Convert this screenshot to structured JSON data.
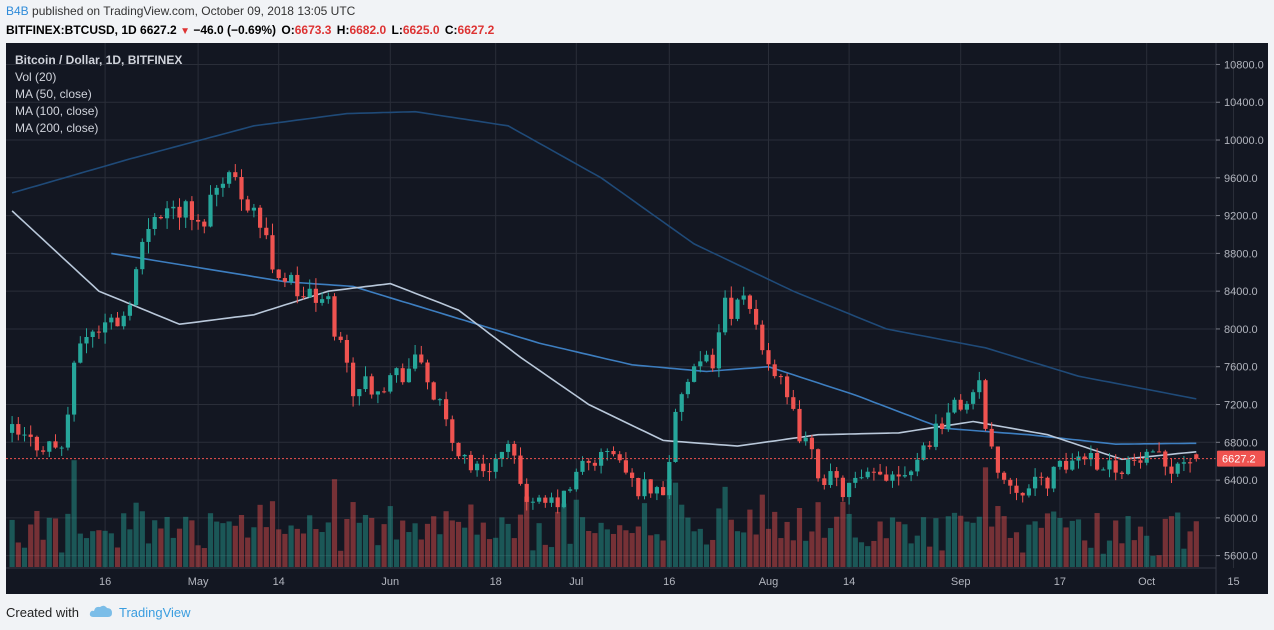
{
  "header": {
    "author": "B4B",
    "published_text": "published on TradingView.com, October 09, 2018 13:05 UTC",
    "symbol": "BITFINEX:BTCUSD, 1D",
    "last": "6627.2",
    "change": "−46.0 (−0.69%)",
    "o_label": "O:",
    "o": "6673.3",
    "h_label": "H:",
    "h": "6682.0",
    "l_label": "L:",
    "l": "6625.0",
    "c_label": "C:",
    "c": "6627.2"
  },
  "legend": {
    "title": "Bitcoin / Dollar, 1D, BITFINEX",
    "vol": "Vol (20)",
    "ma50": "MA (50, close)",
    "ma100": "MA (100, close)",
    "ma200": "MA (200, close)"
  },
  "footer": {
    "created_with": "Created with",
    "brand": "TradingView"
  },
  "colors": {
    "background": "#131722",
    "up": "#26a69a",
    "down": "#ef5350",
    "ma50": "#b9c8da",
    "ma100": "#3d7ec0",
    "ma200": "#1f4a78",
    "price_line": "#ef5350"
  },
  "chart_data": {
    "type": "candlestick",
    "symbol": "BITFINEX:BTCUSD",
    "interval": "1D",
    "date_range": [
      "2018-04-01",
      "2018-10-09"
    ],
    "ylim": [
      5480,
      10900
    ],
    "y_ticks": [
      "10800.0",
      "10400.0",
      "10000.0",
      "9600.0",
      "9200.0",
      "8800.0",
      "8400.0",
      "8000.0",
      "7600.0",
      "7200.0",
      "6800.0",
      "6400.0",
      "6000.0",
      "5600.0"
    ],
    "x_ticks": [
      {
        "date": "2018-04-16",
        "label": "16"
      },
      {
        "date": "2018-05-01",
        "label": "May"
      },
      {
        "date": "2018-05-14",
        "label": "14"
      },
      {
        "date": "2018-06-01",
        "label": "Jun"
      },
      {
        "date": "2018-06-18",
        "label": "18"
      },
      {
        "date": "2018-07-01",
        "label": "Jul"
      },
      {
        "date": "2018-07-16",
        "label": "16"
      },
      {
        "date": "2018-08-01",
        "label": "Aug"
      },
      {
        "date": "2018-08-14",
        "label": "14"
      },
      {
        "date": "2018-09-01",
        "label": "Sep"
      },
      {
        "date": "2018-09-17",
        "label": "17"
      },
      {
        "date": "2018-10-01",
        "label": "Oct"
      },
      {
        "date": "2018-10-15",
        "label": "15"
      }
    ],
    "last_price": 6627.2,
    "last_price_label": "6627.2",
    "close_waypoints": [
      {
        "date": "2018-04-01",
        "close": 6900
      },
      {
        "date": "2018-04-04",
        "close": 6800
      },
      {
        "date": "2018-04-09",
        "close": 6750
      },
      {
        "date": "2018-04-12",
        "close": 7900
      },
      {
        "date": "2018-04-16",
        "close": 8050
      },
      {
        "date": "2018-04-19",
        "close": 8150
      },
      {
        "date": "2018-04-24",
        "close": 9300
      },
      {
        "date": "2018-04-29",
        "close": 9250
      },
      {
        "date": "2018-05-01",
        "close": 9050
      },
      {
        "date": "2018-05-05",
        "close": 9700
      },
      {
        "date": "2018-05-10",
        "close": 9300
      },
      {
        "date": "2018-05-13",
        "close": 8700
      },
      {
        "date": "2018-05-17",
        "close": 8400
      },
      {
        "date": "2018-05-22",
        "close": 8250
      },
      {
        "date": "2018-05-26",
        "close": 7400
      },
      {
        "date": "2018-05-31",
        "close": 7450
      },
      {
        "date": "2018-06-06",
        "close": 7650
      },
      {
        "date": "2018-06-11",
        "close": 6800
      },
      {
        "date": "2018-06-15",
        "close": 6500
      },
      {
        "date": "2018-06-20",
        "close": 6700
      },
      {
        "date": "2018-06-24",
        "close": 6100
      },
      {
        "date": "2018-06-29",
        "close": 6200
      },
      {
        "date": "2018-07-02",
        "close": 6550
      },
      {
        "date": "2018-07-07",
        "close": 6700
      },
      {
        "date": "2018-07-10",
        "close": 6350
      },
      {
        "date": "2018-07-15",
        "close": 6300
      },
      {
        "date": "2018-07-18",
        "close": 7350
      },
      {
        "date": "2018-07-23",
        "close": 7700
      },
      {
        "date": "2018-07-25",
        "close": 8250
      },
      {
        "date": "2018-07-29",
        "close": 8200
      },
      {
        "date": "2018-08-01",
        "close": 7700
      },
      {
        "date": "2018-08-05",
        "close": 7050
      },
      {
        "date": "2018-08-09",
        "close": 6500
      },
      {
        "date": "2018-08-13",
        "close": 6300
      },
      {
        "date": "2018-08-19",
        "close": 6450
      },
      {
        "date": "2018-08-24",
        "close": 6550
      },
      {
        "date": "2018-08-29",
        "close": 7050
      },
      {
        "date": "2018-09-04",
        "close": 7350
      },
      {
        "date": "2018-09-07",
        "close": 6450
      },
      {
        "date": "2018-09-12",
        "close": 6300
      },
      {
        "date": "2018-09-17",
        "close": 6500
      },
      {
        "date": "2018-09-21",
        "close": 6700
      },
      {
        "date": "2018-09-25",
        "close": 6550
      },
      {
        "date": "2018-09-30",
        "close": 6600
      },
      {
        "date": "2018-10-05",
        "close": 6580
      },
      {
        "date": "2018-10-09",
        "close": 6627
      }
    ],
    "ma50_waypoints": [
      {
        "date": "2018-04-01",
        "value": 9250
      },
      {
        "date": "2018-04-15",
        "value": 8400
      },
      {
        "date": "2018-04-28",
        "value": 8050
      },
      {
        "date": "2018-05-10",
        "value": 8150
      },
      {
        "date": "2018-05-22",
        "value": 8400
      },
      {
        "date": "2018-06-01",
        "value": 8480
      },
      {
        "date": "2018-06-12",
        "value": 8200
      },
      {
        "date": "2018-06-22",
        "value": 7700
      },
      {
        "date": "2018-07-03",
        "value": 7200
      },
      {
        "date": "2018-07-15",
        "value": 6820
      },
      {
        "date": "2018-07-27",
        "value": 6760
      },
      {
        "date": "2018-08-09",
        "value": 6880
      },
      {
        "date": "2018-08-22",
        "value": 6900
      },
      {
        "date": "2018-09-03",
        "value": 7020
      },
      {
        "date": "2018-09-15",
        "value": 6880
      },
      {
        "date": "2018-09-27",
        "value": 6620
      },
      {
        "date": "2018-10-09",
        "value": 6700
      }
    ],
    "ma100_waypoints": [
      {
        "date": "2018-04-17",
        "value": 8800
      },
      {
        "date": "2018-05-01",
        "value": 8650
      },
      {
        "date": "2018-05-15",
        "value": 8500
      },
      {
        "date": "2018-05-26",
        "value": 8450
      },
      {
        "date": "2018-06-10",
        "value": 8150
      },
      {
        "date": "2018-06-25",
        "value": 7850
      },
      {
        "date": "2018-07-10",
        "value": 7620
      },
      {
        "date": "2018-07-22",
        "value": 7550
      },
      {
        "date": "2018-08-01",
        "value": 7600
      },
      {
        "date": "2018-08-15",
        "value": 7300
      },
      {
        "date": "2018-08-29",
        "value": 6950
      },
      {
        "date": "2018-09-12",
        "value": 6880
      },
      {
        "date": "2018-09-26",
        "value": 6780
      },
      {
        "date": "2018-10-09",
        "value": 6790
      }
    ],
    "ma200_waypoints": [
      {
        "date": "2018-04-01",
        "value": 9440
      },
      {
        "date": "2018-04-20",
        "value": 9800
      },
      {
        "date": "2018-05-10",
        "value": 10150
      },
      {
        "date": "2018-05-25",
        "value": 10280
      },
      {
        "date": "2018-06-05",
        "value": 10300
      },
      {
        "date": "2018-06-20",
        "value": 10150
      },
      {
        "date": "2018-07-05",
        "value": 9600
      },
      {
        "date": "2018-07-20",
        "value": 8900
      },
      {
        "date": "2018-08-05",
        "value": 8400
      },
      {
        "date": "2018-08-20",
        "value": 8000
      },
      {
        "date": "2018-09-05",
        "value": 7800
      },
      {
        "date": "2018-09-20",
        "value": 7500
      },
      {
        "date": "2018-10-09",
        "value": 7260
      }
    ]
  }
}
